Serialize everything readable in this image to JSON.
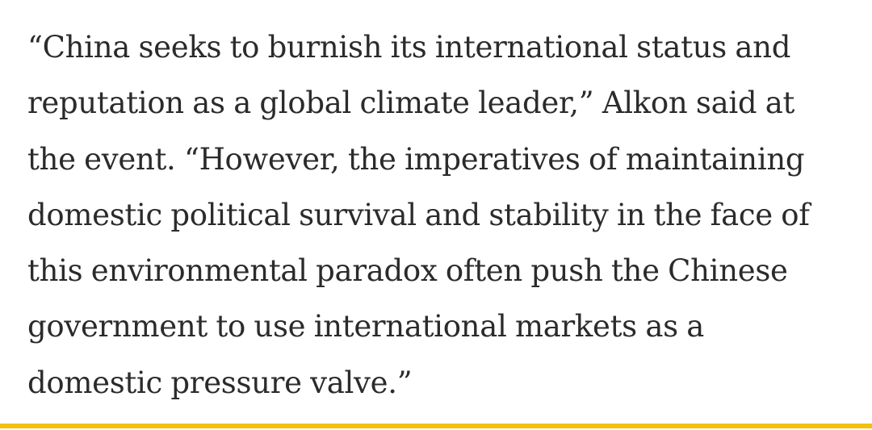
{
  "article": {
    "quote_lines": [
      "“China seeks to burnish its international status and",
      "reputation as a global climate leader,” Alkon said at",
      "the event. “However, the imperatives of maintaining",
      "domestic political survival and stability in the face of",
      "this environmental paradox often push the Chinese",
      "government to use international markets as a",
      "domestic pressure valve.”"
    ]
  },
  "colors": {
    "text": "#2b2b2b",
    "background": "#ffffff",
    "accent_rule": "#f2c110"
  }
}
